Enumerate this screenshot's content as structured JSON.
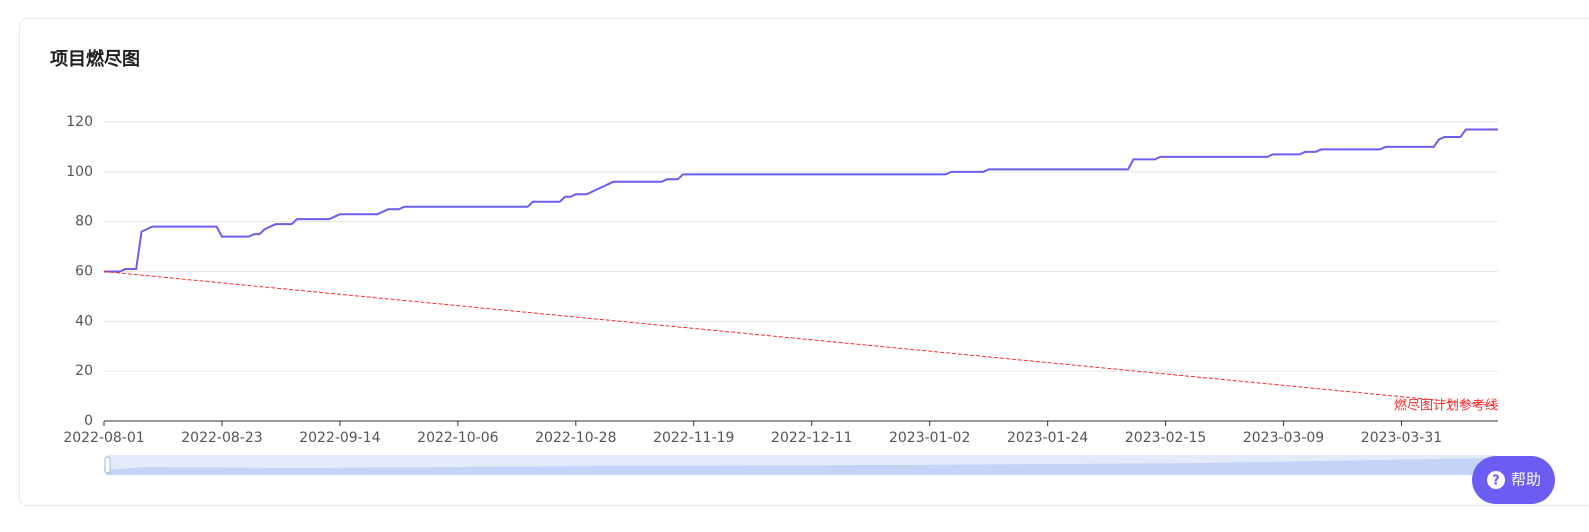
{
  "chart_data": {
    "type": "line",
    "title": "项目燃尽图",
    "xlim": [
      "2022-08-01",
      "2023-04-18"
    ],
    "xticks": [
      "2022-08-01",
      "2022-08-23",
      "2022-09-14",
      "2022-10-06",
      "2022-10-28",
      "2022-11-19",
      "2022-12-11",
      "2023-01-02",
      "2023-01-24",
      "2023-02-15",
      "2023-03-09",
      "2023-03-31"
    ],
    "ylim": [
      0,
      120
    ],
    "yticks": [
      0,
      20,
      40,
      60,
      80,
      100,
      120
    ],
    "grid": true,
    "series": [
      {
        "color": "#6c5df2",
        "style": "solid",
        "x": [
          "2022-08-01",
          "2022-08-04",
          "2022-08-05",
          "2022-08-07",
          "2022-08-08",
          "2022-08-10",
          "2022-08-22",
          "2022-08-23",
          "2022-08-28",
          "2022-08-29",
          "2022-08-30",
          "2022-08-31",
          "2022-09-02",
          "2022-09-05",
          "2022-09-06",
          "2022-09-12",
          "2022-09-13",
          "2022-09-14",
          "2022-09-21",
          "2022-09-23",
          "2022-09-25",
          "2022-09-26",
          "2022-10-19",
          "2022-10-20",
          "2022-10-25",
          "2022-10-26",
          "2022-10-27",
          "2022-10-28",
          "2022-10-30",
          "2022-11-04",
          "2022-11-13",
          "2022-11-14",
          "2022-11-16",
          "2022-11-17",
          "2023-01-05",
          "2023-01-06",
          "2023-01-12",
          "2023-01-13",
          "2023-02-08",
          "2023-02-09",
          "2023-02-13",
          "2023-02-14",
          "2023-03-06",
          "2023-03-07",
          "2023-03-12",
          "2023-03-13",
          "2023-03-15",
          "2023-03-16",
          "2023-03-27",
          "2023-03-28",
          "2023-04-06",
          "2023-04-07",
          "2023-04-08",
          "2023-04-11",
          "2023-04-12",
          "2023-04-18"
        ],
        "values": [
          60,
          60,
          61,
          61,
          76,
          78,
          78,
          74,
          74,
          75,
          75,
          77,
          79,
          79,
          81,
          81,
          82,
          83,
          83,
          85,
          85,
          86,
          86,
          88,
          88,
          90,
          90,
          91,
          91,
          96,
          96,
          97,
          97,
          99,
          99,
          100,
          100,
          101,
          101,
          105,
          105,
          106,
          106,
          107,
          107,
          108,
          108,
          109,
          109,
          110,
          110,
          113,
          114,
          114,
          117,
          117
        ]
      },
      {
        "name": "燃尽图计划参考线",
        "color": "#ff2a2a",
        "style": "dashed",
        "x": [
          "2022-08-01",
          "2023-04-18"
        ],
        "values": [
          60,
          6
        ]
      }
    ]
  },
  "help_button": {
    "icon": "?",
    "label": "帮助"
  }
}
